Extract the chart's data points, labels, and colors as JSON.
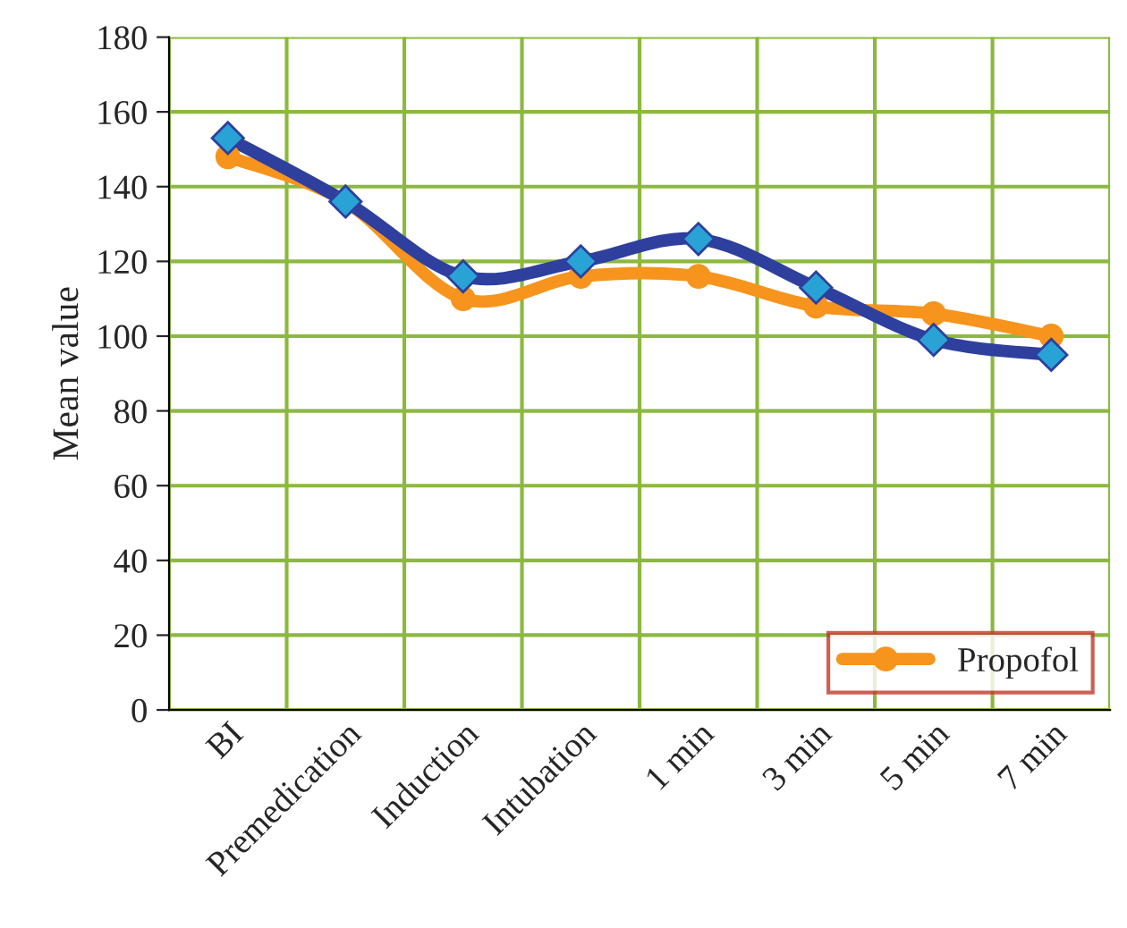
{
  "chart_data": {
    "type": "line",
    "ylabel": "Mean value",
    "categories": [
      "BI",
      "Premedication",
      "Induction",
      "Intubation",
      "1 min",
      "3 min",
      "5 min",
      "7 min"
    ],
    "series": [
      {
        "name": "Propofol",
        "color": "#f7941d",
        "marker": "circle",
        "values": [
          148,
          136,
          110,
          116,
          116,
          108,
          106,
          100
        ]
      },
      {
        "color": "#2e3f9e",
        "marker": "diamond",
        "values": [
          153,
          136,
          116,
          120,
          126,
          113,
          99,
          95
        ]
      }
    ],
    "ylim": [
      0,
      180
    ],
    "yticks": [
      0,
      20,
      40,
      60,
      80,
      100,
      120,
      140,
      160,
      180
    ],
    "grid": true,
    "legend": "bottom right",
    "line_style": "solid"
  }
}
